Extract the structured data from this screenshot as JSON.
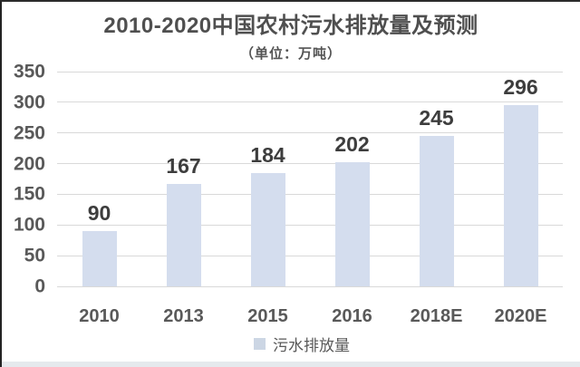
{
  "chart_data": {
    "type": "bar",
    "title": "2010-2020中国农村污水排放量及预测",
    "subtitle": "（单位：万吨）",
    "categories": [
      "2010",
      "2013",
      "2015",
      "2016",
      "2018E",
      "2020E"
    ],
    "series": [
      {
        "name": "污水排放量",
        "values": [
          90,
          167,
          184,
          202,
          245,
          296
        ]
      }
    ],
    "ylim": [
      0,
      350
    ],
    "yticks": [
      0,
      50,
      100,
      150,
      200,
      250,
      300,
      350
    ],
    "grid": true,
    "legend_position": "bottom",
    "bar_color": "#d4ddee",
    "legend_marker_color": "#ccd6e4",
    "gridline_color": "#d9d9d9",
    "value_label_color": "#3d3d3d",
    "axis_label_color": "#595959"
  }
}
